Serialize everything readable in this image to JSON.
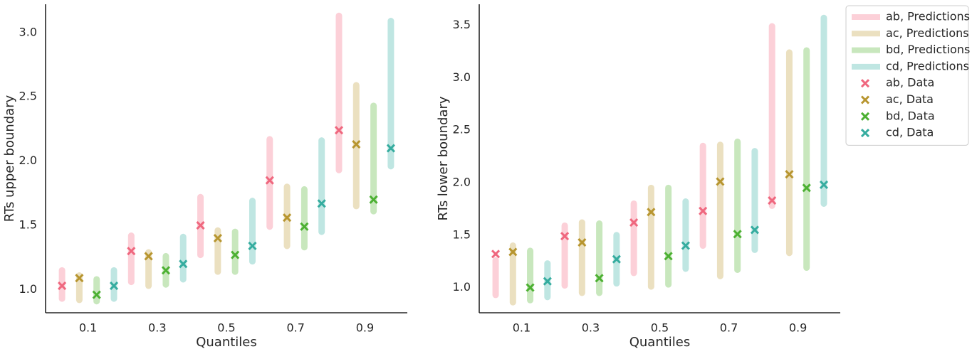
{
  "chart_data": [
    {
      "type": "range",
      "xlabel": "Quantiles",
      "ylabel": "RTs upper boundary",
      "xlim": [
        -0.0225,
        1.0225
      ],
      "ylim": [
        0.82,
        3.22
      ],
      "xticks": [
        0.1,
        0.3,
        0.5,
        0.7,
        0.9
      ],
      "yticks": [
        {
          "value": 1,
          "label": "1.0"
        },
        1.5,
        {
          "value": 2,
          "label": "2.0"
        },
        2.5,
        {
          "value": 3,
          "label": "3.0"
        }
      ],
      "predictions": [
        {
          "color": "#fcd0d8",
          "x": [
            0.025,
            0.225,
            0.425,
            0.625,
            0.825
          ],
          "low": [
            0.93,
            1.06,
            1.27,
            1.49,
            1.93
          ],
          "high": [
            1.15,
            1.42,
            1.72,
            2.17,
            3.13
          ]
        },
        {
          "color": "#ebe0c0",
          "x": [
            0.075,
            0.275,
            0.475,
            0.675,
            0.875
          ],
          "low": [
            0.92,
            1.03,
            1.14,
            1.34,
            1.65
          ],
          "high": [
            1.11,
            1.29,
            1.46,
            1.8,
            2.59
          ]
        },
        {
          "color": "#c8e7bd",
          "x": [
            0.125,
            0.325,
            0.525,
            0.725,
            0.925
          ],
          "low": [
            0.91,
            1.04,
            1.14,
            1.33,
            1.61
          ],
          "high": [
            1.08,
            1.26,
            1.45,
            1.78,
            2.43
          ]
        },
        {
          "color": "#bfe6e2",
          "x": [
            0.175,
            0.375,
            0.575,
            0.775,
            0.975
          ],
          "low": [
            0.93,
            1.08,
            1.22,
            1.45,
            1.96
          ],
          "high": [
            1.15,
            1.41,
            1.69,
            2.16,
            3.09
          ]
        }
      ],
      "data": [
        {
          "color": "#ef677e",
          "x": [
            0.025,
            0.225,
            0.425,
            0.625,
            0.825
          ],
          "values": [
            1.03,
            1.3,
            1.5,
            1.85,
            2.24
          ]
        },
        {
          "color": "#b7952f",
          "x": [
            0.075,
            0.275,
            0.475,
            0.675,
            0.875
          ],
          "values": [
            1.09,
            1.26,
            1.4,
            1.56,
            2.13
          ]
        },
        {
          "color": "#4cb032",
          "x": [
            0.125,
            0.325,
            0.525,
            0.725,
            0.925
          ],
          "values": [
            0.96,
            1.15,
            1.27,
            1.49,
            1.7
          ]
        },
        {
          "color": "#35ac9f",
          "x": [
            0.175,
            0.375,
            0.575,
            0.775,
            0.975
          ],
          "values": [
            1.03,
            1.2,
            1.34,
            1.67,
            2.1
          ]
        }
      ]
    },
    {
      "type": "range",
      "xlabel": "Quantiles",
      "ylabel": "RTs lower boundary",
      "xlim": [
        -0.0225,
        1.0225
      ],
      "ylim": [
        0.76,
        3.7
      ],
      "xticks": [
        0.1,
        0.3,
        0.5,
        0.7,
        0.9
      ],
      "yticks": [
        {
          "value": 1,
          "label": "1.0"
        },
        1.5,
        {
          "value": 2,
          "label": "2.0"
        },
        2.5,
        {
          "value": 3,
          "label": "3.0"
        },
        3.5
      ],
      "legend": "upper left outside",
      "predictions": [
        {
          "name": "ab, Predictions",
          "color": "#fcd0d8",
          "x": [
            0.025,
            0.225,
            0.425,
            0.625,
            0.825
          ],
          "low": [
            0.93,
            1.02,
            1.14,
            1.4,
            1.78
          ],
          "high": [
            1.26,
            1.59,
            1.8,
            2.35,
            3.49
          ]
        },
        {
          "name": "ac, Predictions",
          "color": "#ebe0c0",
          "x": [
            0.075,
            0.275,
            0.475,
            0.675,
            0.875
          ],
          "low": [
            0.86,
            0.95,
            1.01,
            1.11,
            1.33
          ],
          "high": [
            1.4,
            1.62,
            1.95,
            2.36,
            3.24
          ]
        },
        {
          "name": "bd, Predictions",
          "color": "#c8e7bd",
          "x": [
            0.125,
            0.325,
            0.525,
            0.725,
            0.925
          ],
          "low": [
            0.88,
            0.95,
            1.03,
            1.17,
            1.19
          ],
          "high": [
            1.35,
            1.61,
            1.95,
            2.39,
            3.26
          ]
        },
        {
          "name": "cd, Predictions",
          "color": "#bfe6e2",
          "x": [
            0.175,
            0.375,
            0.575,
            0.775,
            0.975
          ],
          "low": [
            0.91,
            1.04,
            1.18,
            1.36,
            1.8
          ],
          "high": [
            1.23,
            1.5,
            1.82,
            2.3,
            3.57
          ]
        }
      ],
      "data": [
        {
          "name": "ab, Data",
          "color": "#ef677e",
          "x": [
            0.025,
            0.225,
            0.425,
            0.625,
            0.825
          ],
          "values": [
            1.32,
            1.49,
            1.62,
            1.73,
            1.83
          ]
        },
        {
          "name": "ac, Data",
          "color": "#b7952f",
          "x": [
            0.075,
            0.275,
            0.475,
            0.675,
            0.875
          ],
          "values": [
            1.34,
            1.43,
            1.72,
            2.01,
            2.08
          ]
        },
        {
          "name": "bd, Data",
          "color": "#4cb032",
          "x": [
            0.125,
            0.325,
            0.525,
            0.725,
            0.925
          ],
          "values": [
            1.0,
            1.09,
            1.3,
            1.51,
            1.95
          ]
        },
        {
          "name": "cd, Data",
          "color": "#35ac9f",
          "x": [
            0.175,
            0.375,
            0.575,
            0.775,
            0.975
          ],
          "values": [
            1.06,
            1.27,
            1.4,
            1.55,
            1.98
          ]
        }
      ]
    }
  ]
}
